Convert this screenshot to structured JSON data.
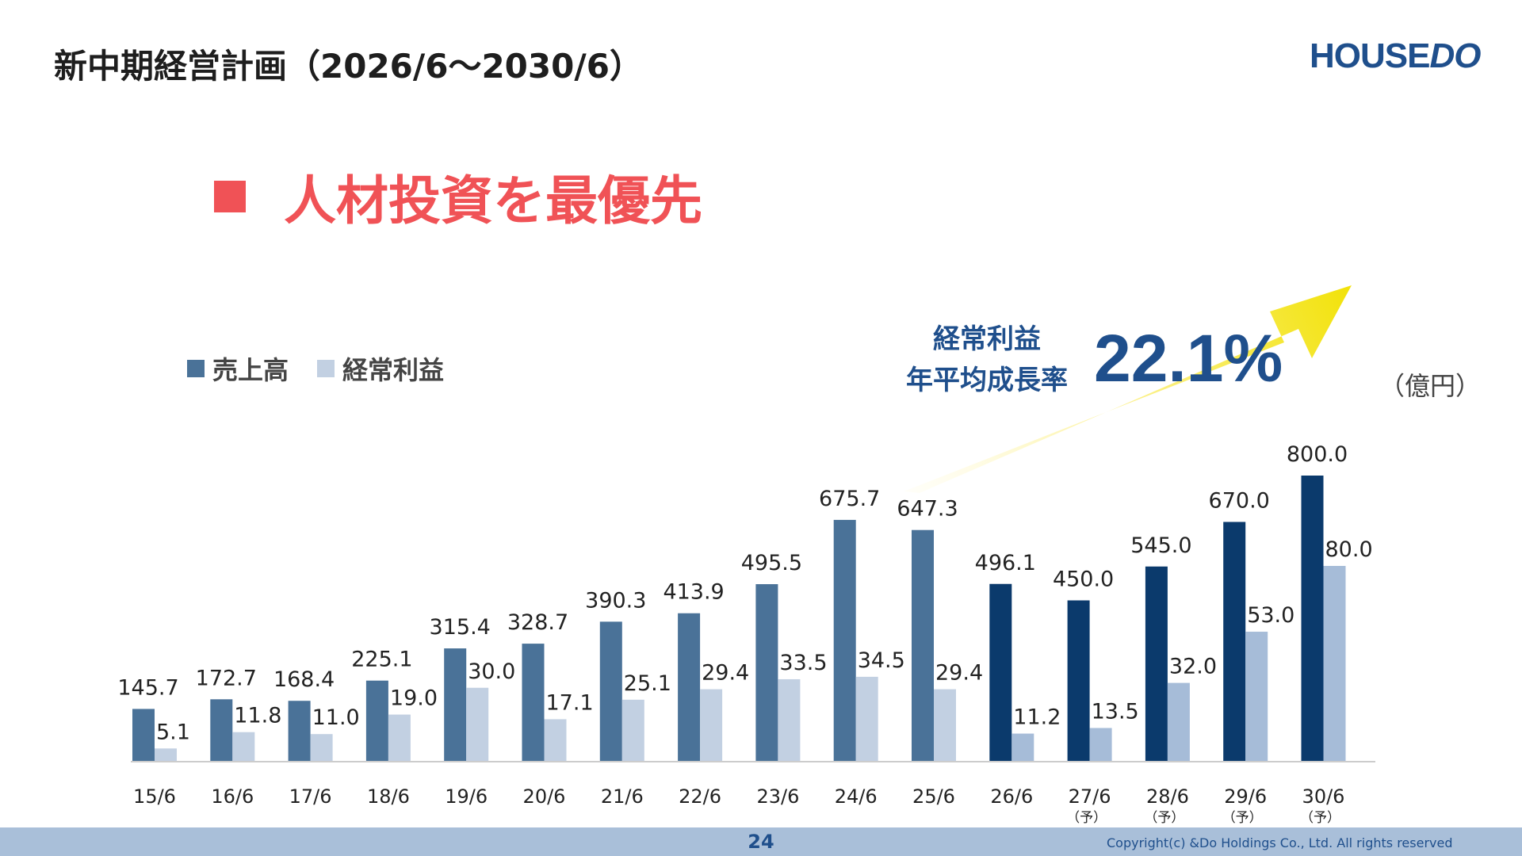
{
  "header": {
    "title": "新中期経営計画（2026/6〜2030/6）",
    "logo_main": "HOUSE",
    "logo_accent": "DO"
  },
  "headline": "人材投資を最優先",
  "legend": {
    "sales": "売上高",
    "profit": "経常利益"
  },
  "unit": "（億円）",
  "cagr": {
    "label_line1": "経常利益",
    "label_line2": "年平均成長率",
    "value": "22.1%"
  },
  "chart_data": {
    "type": "bar",
    "categories": [
      "15/6",
      "16/6",
      "17/6",
      "18/6",
      "19/6",
      "20/6",
      "21/6",
      "22/6",
      "23/6",
      "24/6",
      "25/6",
      "26/6",
      "27/6",
      "28/6",
      "29/6",
      "30/6"
    ],
    "category_notes": [
      "",
      "",
      "",
      "",
      "",
      "",
      "",
      "",
      "",
      "",
      "",
      "",
      "（予）",
      "（予）",
      "（予）",
      "（予）"
    ],
    "series": [
      {
        "name": "売上高",
        "values": [
          145.7,
          172.7,
          168.4,
          225.1,
          315.4,
          328.7,
          390.3,
          413.9,
          495.5,
          675.7,
          647.3,
          496.1,
          450.0,
          545.0,
          670.0,
          800.0
        ],
        "labels": [
          "145.7",
          "172.7",
          "168.4",
          "225.1",
          "315.4",
          "328.7",
          "390.3",
          "413.9",
          "495.5",
          "675.7",
          "647.3",
          "496.1",
          "450.0",
          "545.0",
          "670.0",
          "800.0"
        ]
      },
      {
        "name": "経常利益",
        "values": [
          5.1,
          11.8,
          11.0,
          19.0,
          30.0,
          17.1,
          25.1,
          29.4,
          33.5,
          34.5,
          29.4,
          11.2,
          13.5,
          32.0,
          53.0,
          80.0
        ],
        "labels": [
          "5.1",
          "11.8",
          "11.0",
          "19.0",
          "30.0",
          "17.1",
          "25.1",
          "29.4",
          "33.5",
          "34.5",
          "29.4",
          "11.2",
          "13.5",
          "32.0",
          "53.0",
          "80.0"
        ]
      }
    ],
    "plan_start_index": 11,
    "colors": {
      "sales_actual": "#4a7298",
      "sales_plan": "#0b3a6c",
      "profit_actual": "#c2d0e2",
      "profit_plan": "#a6bcd8",
      "axis": "#cccccc"
    },
    "grid": false,
    "legend_position": "top-left"
  },
  "footer": {
    "page_number": "24",
    "copyright": "Copyright(c) &Do Holdings Co., Ltd. All rights reserved"
  }
}
